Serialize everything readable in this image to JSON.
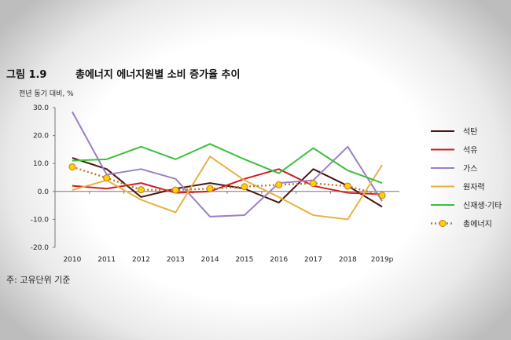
{
  "figure": {
    "label": "그림 1.9",
    "title": "총에너지 에너지원별 소비 증가율 추이",
    "unit": "전년 동기 대비, %",
    "footnote": "주: 고유단위 기준"
  },
  "chart_data": {
    "type": "line",
    "ylabel": "전년 동기 대비, %",
    "ylim": [
      -20,
      30
    ],
    "yticks": [
      "30.0",
      "20.0",
      "10.0",
      "0.0",
      "-10.0",
      "-20.0"
    ],
    "ytick_values": [
      30,
      20,
      10,
      0,
      -10,
      -20
    ],
    "categories": [
      "2010",
      "2011",
      "2012",
      "2013",
      "2014",
      "2015",
      "2016",
      "2017",
      "2018",
      "2019p"
    ],
    "legend_position": "right",
    "series": [
      {
        "name": "석탄",
        "color": "#4a1512",
        "style": "solid",
        "values": [
          12.0,
          8.0,
          -2.0,
          1.0,
          3.0,
          1.0,
          -4.0,
          8.0,
          2.0,
          -5.5
        ]
      },
      {
        "name": "석유",
        "color": "#cc1f1f",
        "style": "solid",
        "values": [
          2.0,
          1.0,
          3.0,
          -0.5,
          0.0,
          4.5,
          8.0,
          2.0,
          -0.5,
          -1.0
        ]
      },
      {
        "name": "가스",
        "color": "#9b7fc6",
        "style": "solid",
        "values": [
          28.5,
          6.0,
          8.0,
          4.5,
          -9.0,
          -8.5,
          3.0,
          4.0,
          16.0,
          -3.5
        ]
      },
      {
        "name": "원자력",
        "color": "#e8b144",
        "style": "solid",
        "values": [
          0.5,
          4.0,
          -3.0,
          -7.5,
          12.5,
          4.0,
          -2.0,
          -8.5,
          -10.0,
          9.5
        ]
      },
      {
        "name": "신재생·기타",
        "color": "#3cbf3c",
        "style": "solid",
        "values": [
          11.0,
          11.5,
          16.0,
          11.5,
          17.0,
          11.5,
          6.5,
          15.5,
          7.5,
          3.0
        ]
      },
      {
        "name": "총에너지",
        "color": "#c7762c",
        "style": "dotted",
        "marker": "circle",
        "marker_fill": "#ffd200",
        "values": [
          8.8,
          4.8,
          0.6,
          0.5,
          1.0,
          1.7,
          2.4,
          2.9,
          1.9,
          -1.4
        ]
      }
    ]
  }
}
